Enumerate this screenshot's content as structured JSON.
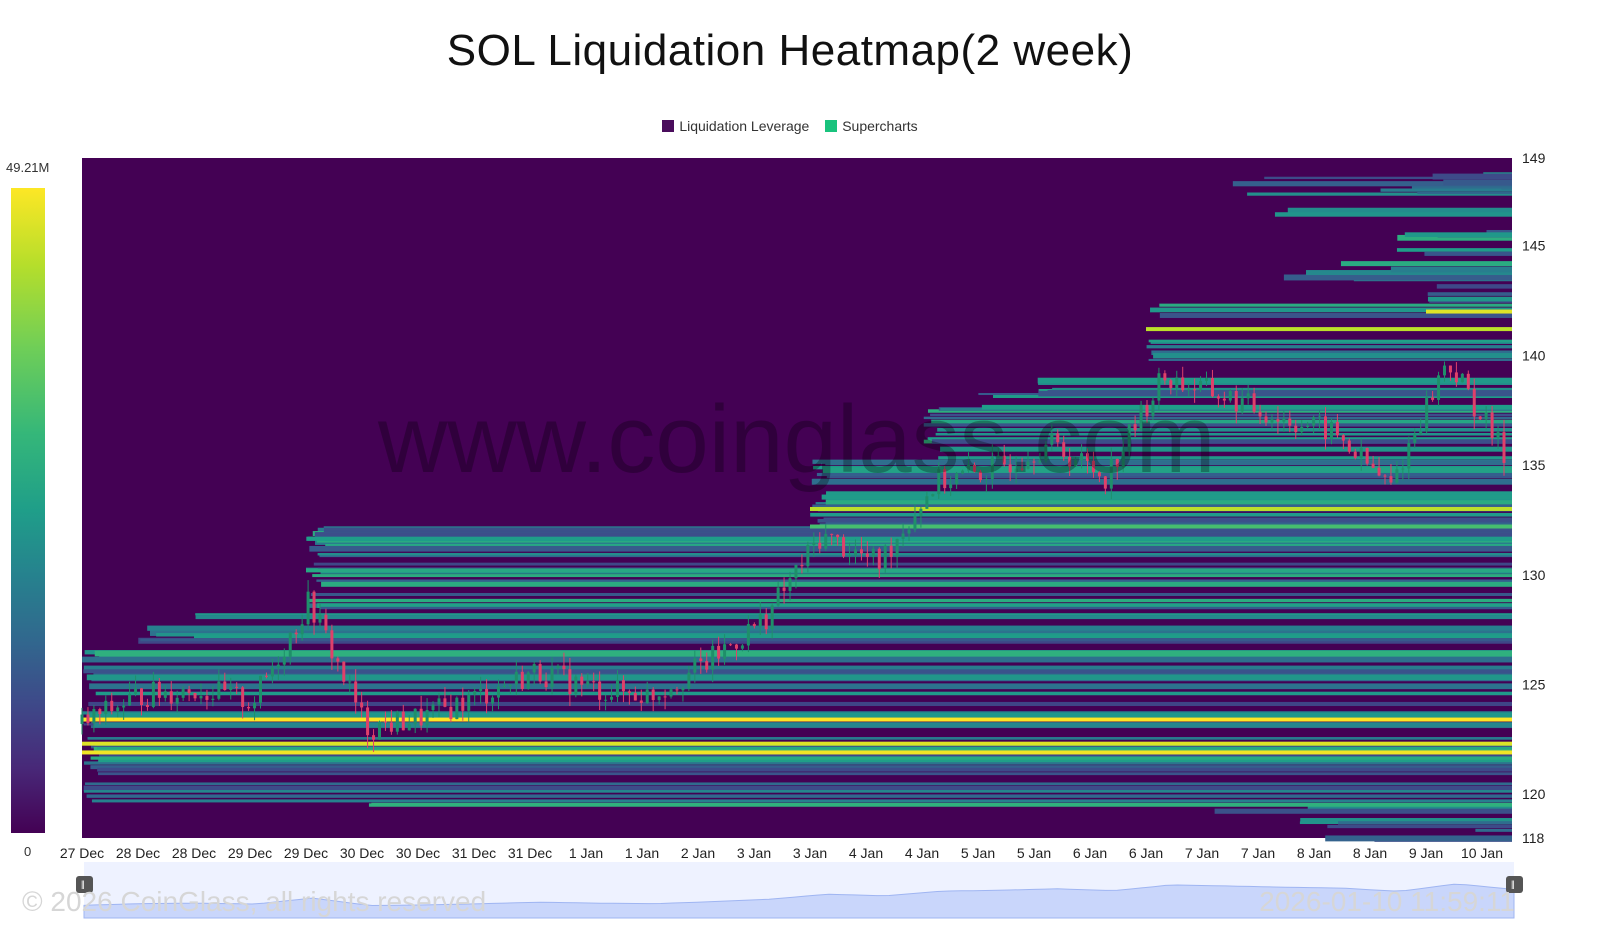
{
  "chart_data": {
    "type": "heatmap",
    "title": "SOL Liquidation Heatmap(2 week)",
    "legend": [
      {
        "name": "Liquidation Leverage",
        "color": "#4a0d5c"
      },
      {
        "name": "Supercharts",
        "color": "#19c37d"
      }
    ],
    "x_ticks": [
      "27 Dec",
      "28 Dec",
      "28 Dec",
      "29 Dec",
      "29 Dec",
      "30 Dec",
      "30 Dec",
      "31 Dec",
      "31 Dec",
      "1 Jan",
      "1 Jan",
      "2 Jan",
      "3 Jan",
      "3 Jan",
      "4 Jan",
      "4 Jan",
      "5 Jan",
      "5 Jan",
      "6 Jan",
      "6 Jan",
      "7 Jan",
      "7 Jan",
      "8 Jan",
      "8 Jan",
      "9 Jan",
      "10 Jan"
    ],
    "y_ticks": [
      149,
      145,
      140,
      135,
      130,
      125,
      120,
      118
    ],
    "ylim": [
      118,
      149
    ],
    "colorscale": {
      "min_label": "0",
      "max_label": "49.21M",
      "min": 0,
      "max": 49.21
    },
    "price_series": {
      "name": "SOL price",
      "x_ticks_index": [
        0,
        1,
        2,
        3,
        4,
        5,
        6,
        7,
        8,
        9,
        10,
        11,
        12,
        13,
        14,
        15,
        16,
        17,
        18,
        19,
        20,
        21,
        22,
        23,
        24,
        25
      ],
      "values": [
        123.2,
        124.5,
        124.8,
        124.2,
        128.8,
        123.0,
        123.5,
        124.5,
        125.6,
        124.8,
        124.5,
        126.0,
        128.0,
        131.8,
        130.5,
        134.2,
        134.8,
        136.0,
        134.5,
        139.0,
        138.2,
        137.2,
        136.5,
        134.0,
        139.8,
        135.5
      ]
    },
    "liquidation_bands": [
      {
        "price": 142.0,
        "intensity": 0.95
      },
      {
        "price": 141.2,
        "intensity": 0.9
      },
      {
        "price": 133.0,
        "intensity": 0.9
      },
      {
        "price": 132.2,
        "intensity": 0.7
      },
      {
        "price": 130.2,
        "intensity": 0.6
      },
      {
        "price": 127.2,
        "intensity": 0.55
      },
      {
        "price": 123.4,
        "intensity": 1.0
      },
      {
        "price": 122.3,
        "intensity": 0.95
      },
      {
        "price": 121.9,
        "intensity": 0.98
      }
    ],
    "grid": false
  },
  "watermark": "www.coinglass.com",
  "footer": {
    "copyright": "© 2026 CoinGlass, all rights reserved",
    "timestamp": "2026-01-10 11:59:11"
  },
  "colors": {
    "background_heat": "#440154",
    "candle_up": "#1f8f6a",
    "candle_down": "#e0406a"
  }
}
